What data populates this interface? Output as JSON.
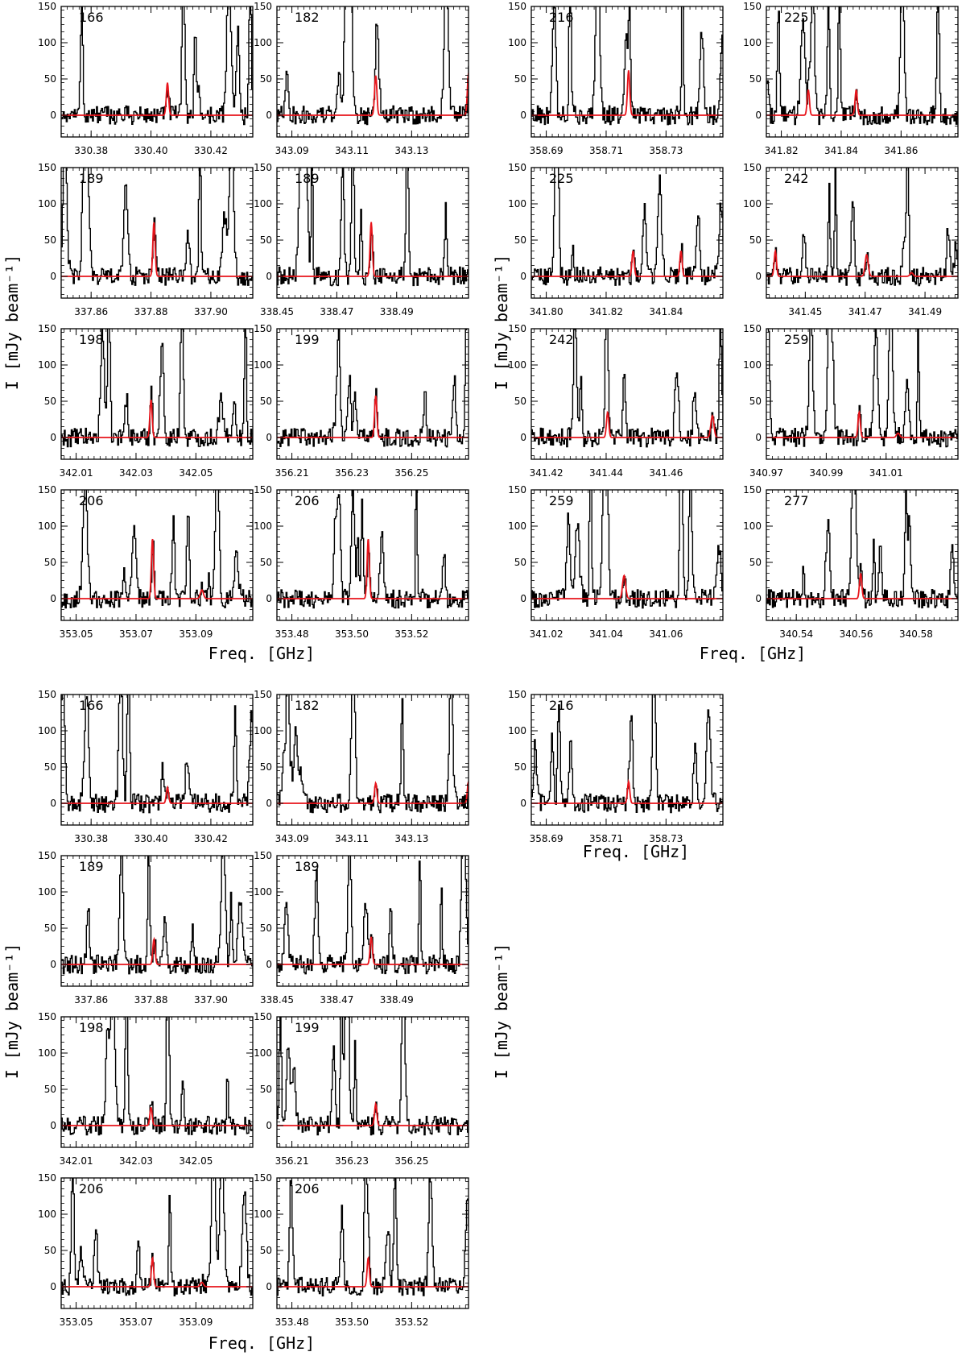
{
  "colors": {
    "observed": "#000000",
    "model": "#e8141b",
    "background": "#ffffff"
  },
  "axis_titles": {
    "y": "I [mJy beam⁻¹]",
    "x": "Freq. [GHz]"
  },
  "chart_data": {
    "type": "line",
    "title": "",
    "xlabel": "Freq. [GHz]",
    "ylabel": "I [mJy beam⁻¹]",
    "ylim": [
      -30,
      150
    ],
    "yticks": [
      0,
      50,
      100,
      150
    ],
    "series_legend": [
      "observed spectrum (black)",
      "model line (red)"
    ],
    "blocks": [
      {
        "block": "top-left",
        "panels": [
          {
            "label": "166",
            "xlim": [
              330.37,
              330.434
            ],
            "xticks": [
              "330.38",
              "330.40",
              "330.42"
            ],
            "model_lines": [
              {
                "center": 330.4055,
                "peak": 45,
                "fwhm": 0.0009
              }
            ]
          },
          {
            "label": "182",
            "xlim": [
              343.085,
              343.149
            ],
            "xticks": [
              "343.09",
              "343.11",
              "343.13"
            ],
            "model_lines": [
              {
                "center": 343.118,
                "peak": 55,
                "fwhm": 0.0009
              },
              {
                "center": 343.149,
                "peak": 58,
                "fwhm": 0.0009
              }
            ]
          },
          {
            "label": "189",
            "xlim": [
              337.85,
              337.914
            ],
            "xticks": [
              "337.86",
              "337.88",
              "337.90"
            ],
            "model_lines": [
              {
                "center": 337.881,
                "peak": 75,
                "fwhm": 0.0009
              }
            ]
          },
          {
            "label": "189",
            "xlim": [
              338.45,
              338.514
            ],
            "xticks": [
              "338.45",
              "338.47",
              "338.49"
            ],
            "model_lines": [
              {
                "center": 338.4815,
                "peak": 75,
                "fwhm": 0.0009
              }
            ]
          },
          {
            "label": "198",
            "xlim": [
              342.005,
              342.069
            ],
            "xticks": [
              "342.01",
              "342.03",
              "342.05"
            ],
            "model_lines": [
              {
                "center": 342.035,
                "peak": 52,
                "fwhm": 0.0009
              }
            ]
          },
          {
            "label": "199",
            "xlim": [
              356.205,
              356.269
            ],
            "xticks": [
              "356.21",
              "356.23",
              "356.25"
            ],
            "model_lines": [
              {
                "center": 356.238,
                "peak": 58,
                "fwhm": 0.0009
              }
            ]
          },
          {
            "label": "206",
            "xlim": [
              353.045,
              353.109
            ],
            "xticks": [
              "353.05",
              "353.07",
              "353.09"
            ],
            "model_lines": [
              {
                "center": 353.0755,
                "peak": 83,
                "fwhm": 0.0009
              },
              {
                "center": 353.092,
                "peak": 12,
                "fwhm": 0.0012
              }
            ]
          },
          {
            "label": "206",
            "xlim": [
              353.475,
              353.539
            ],
            "xticks": [
              "353.48",
              "353.50",
              "353.52"
            ],
            "model_lines": [
              {
                "center": 353.5055,
                "peak": 83,
                "fwhm": 0.0009
              }
            ]
          }
        ]
      },
      {
        "block": "top-right",
        "panels": [
          {
            "label": "216",
            "xlim": [
              358.685,
              358.749
            ],
            "xticks": [
              "358.69",
              "358.71",
              "358.73"
            ],
            "model_lines": [
              {
                "center": 358.7175,
                "peak": 62,
                "fwhm": 0.0009
              }
            ]
          },
          {
            "label": "225",
            "xlim": [
              341.815,
              341.879
            ],
            "xticks": [
              "341.82",
              "341.84",
              "341.86"
            ],
            "model_lines": [
              {
                "center": 341.829,
                "peak": 35,
                "fwhm": 0.0009
              },
              {
                "center": 341.845,
                "peak": 35,
                "fwhm": 0.0009
              }
            ]
          },
          {
            "label": "225",
            "xlim": [
              341.795,
              341.859
            ],
            "xticks": [
              "341.80",
              "341.82",
              "341.84"
            ],
            "model_lines": [
              {
                "center": 341.829,
                "peak": 35,
                "fwhm": 0.0009
              },
              {
                "center": 341.845,
                "peak": 35,
                "fwhm": 0.0009
              }
            ]
          },
          {
            "label": "242",
            "xlim": [
              341.437,
              341.501
            ],
            "xticks": [
              "341.45",
              "341.47",
              "341.49"
            ],
            "model_lines": [
              {
                "center": 341.44,
                "peak": 35,
                "fwhm": 0.0009
              },
              {
                "center": 341.4705,
                "peak": 30,
                "fwhm": 0.0012
              },
              {
                "center": 341.4855,
                "peak": 5,
                "fwhm": 0.0012
              }
            ]
          },
          {
            "label": "242",
            "xlim": [
              341.415,
              341.479
            ],
            "xticks": [
              "341.42",
              "341.44",
              "341.46"
            ],
            "model_lines": [
              {
                "center": 341.4405,
                "peak": 35,
                "fwhm": 0.0009
              },
              {
                "center": 341.4755,
                "peak": 30,
                "fwhm": 0.0012
              }
            ]
          },
          {
            "label": "259",
            "xlim": [
              340.97,
              341.034
            ],
            "xticks": [
              "340.97",
              "340.99",
              "341.01"
            ],
            "model_lines": [
              {
                "center": 341.001,
                "peak": 35,
                "fwhm": 0.0009
              },
              {
                "center": 341.014,
                "peak": 6,
                "fwhm": 0.0012
              }
            ]
          },
          {
            "label": "259",
            "xlim": [
              341.015,
              341.079
            ],
            "xticks": [
              "341.02",
              "341.04",
              "341.06"
            ],
            "model_lines": [
              {
                "center": 341.046,
                "peak": 32,
                "fwhm": 0.0012
              }
            ]
          },
          {
            "label": "277",
            "xlim": [
              340.53,
              340.594
            ],
            "xticks": [
              "340.54",
              "340.56",
              "340.58"
            ],
            "model_lines": [
              {
                "center": 340.5615,
                "peak": 35,
                "fwhm": 0.0009
              }
            ]
          }
        ]
      },
      {
        "block": "bottom-left",
        "panels": [
          {
            "label": "166",
            "xlim": [
              330.37,
              330.434
            ],
            "xticks": [
              "330.38",
              "330.40",
              "330.42"
            ],
            "model_lines": [
              {
                "center": 330.4055,
                "peak": 22,
                "fwhm": 0.0009
              }
            ]
          },
          {
            "label": "182",
            "xlim": [
              343.085,
              343.149
            ],
            "xticks": [
              "343.09",
              "343.11",
              "343.13"
            ],
            "model_lines": [
              {
                "center": 343.118,
                "peak": 28,
                "fwhm": 0.0009
              },
              {
                "center": 343.149,
                "peak": 30,
                "fwhm": 0.0009
              }
            ]
          },
          {
            "label": "189",
            "xlim": [
              337.85,
              337.914
            ],
            "xticks": [
              "337.86",
              "337.88",
              "337.90"
            ],
            "model_lines": [
              {
                "center": 337.881,
                "peak": 35,
                "fwhm": 0.0009
              }
            ]
          },
          {
            "label": "189",
            "xlim": [
              338.45,
              338.514
            ],
            "xticks": [
              "338.45",
              "338.47",
              "338.49"
            ],
            "model_lines": [
              {
                "center": 338.4815,
                "peak": 38,
                "fwhm": 0.0009
              }
            ]
          },
          {
            "label": "198",
            "xlim": [
              342.005,
              342.069
            ],
            "xticks": [
              "342.01",
              "342.03",
              "342.05"
            ],
            "model_lines": [
              {
                "center": 342.035,
                "peak": 25,
                "fwhm": 0.0009
              }
            ]
          },
          {
            "label": "199",
            "xlim": [
              356.205,
              356.269
            ],
            "xticks": [
              "356.21",
              "356.23",
              "356.25"
            ],
            "model_lines": [
              {
                "center": 356.238,
                "peak": 30,
                "fwhm": 0.0009
              }
            ]
          },
          {
            "label": "206",
            "xlim": [
              353.045,
              353.109
            ],
            "xticks": [
              "353.05",
              "353.07",
              "353.09"
            ],
            "model_lines": [
              {
                "center": 353.0755,
                "peak": 40,
                "fwhm": 0.0009
              },
              {
                "center": 353.092,
                "peak": 6,
                "fwhm": 0.0012
              }
            ]
          },
          {
            "label": "206",
            "xlim": [
              353.475,
              353.539
            ],
            "xticks": [
              "353.48",
              "353.50",
              "353.52"
            ],
            "model_lines": [
              {
                "center": 353.5055,
                "peak": 40,
                "fwhm": 0.0009
              }
            ]
          }
        ]
      },
      {
        "block": "bottom-right",
        "panels": [
          {
            "label": "216",
            "xlim": [
              358.685,
              358.749
            ],
            "xticks": [
              "358.69",
              "358.71",
              "358.73"
            ],
            "model_lines": [
              {
                "center": 358.7175,
                "peak": 30,
                "fwhm": 0.0009
              }
            ]
          }
        ]
      }
    ]
  }
}
